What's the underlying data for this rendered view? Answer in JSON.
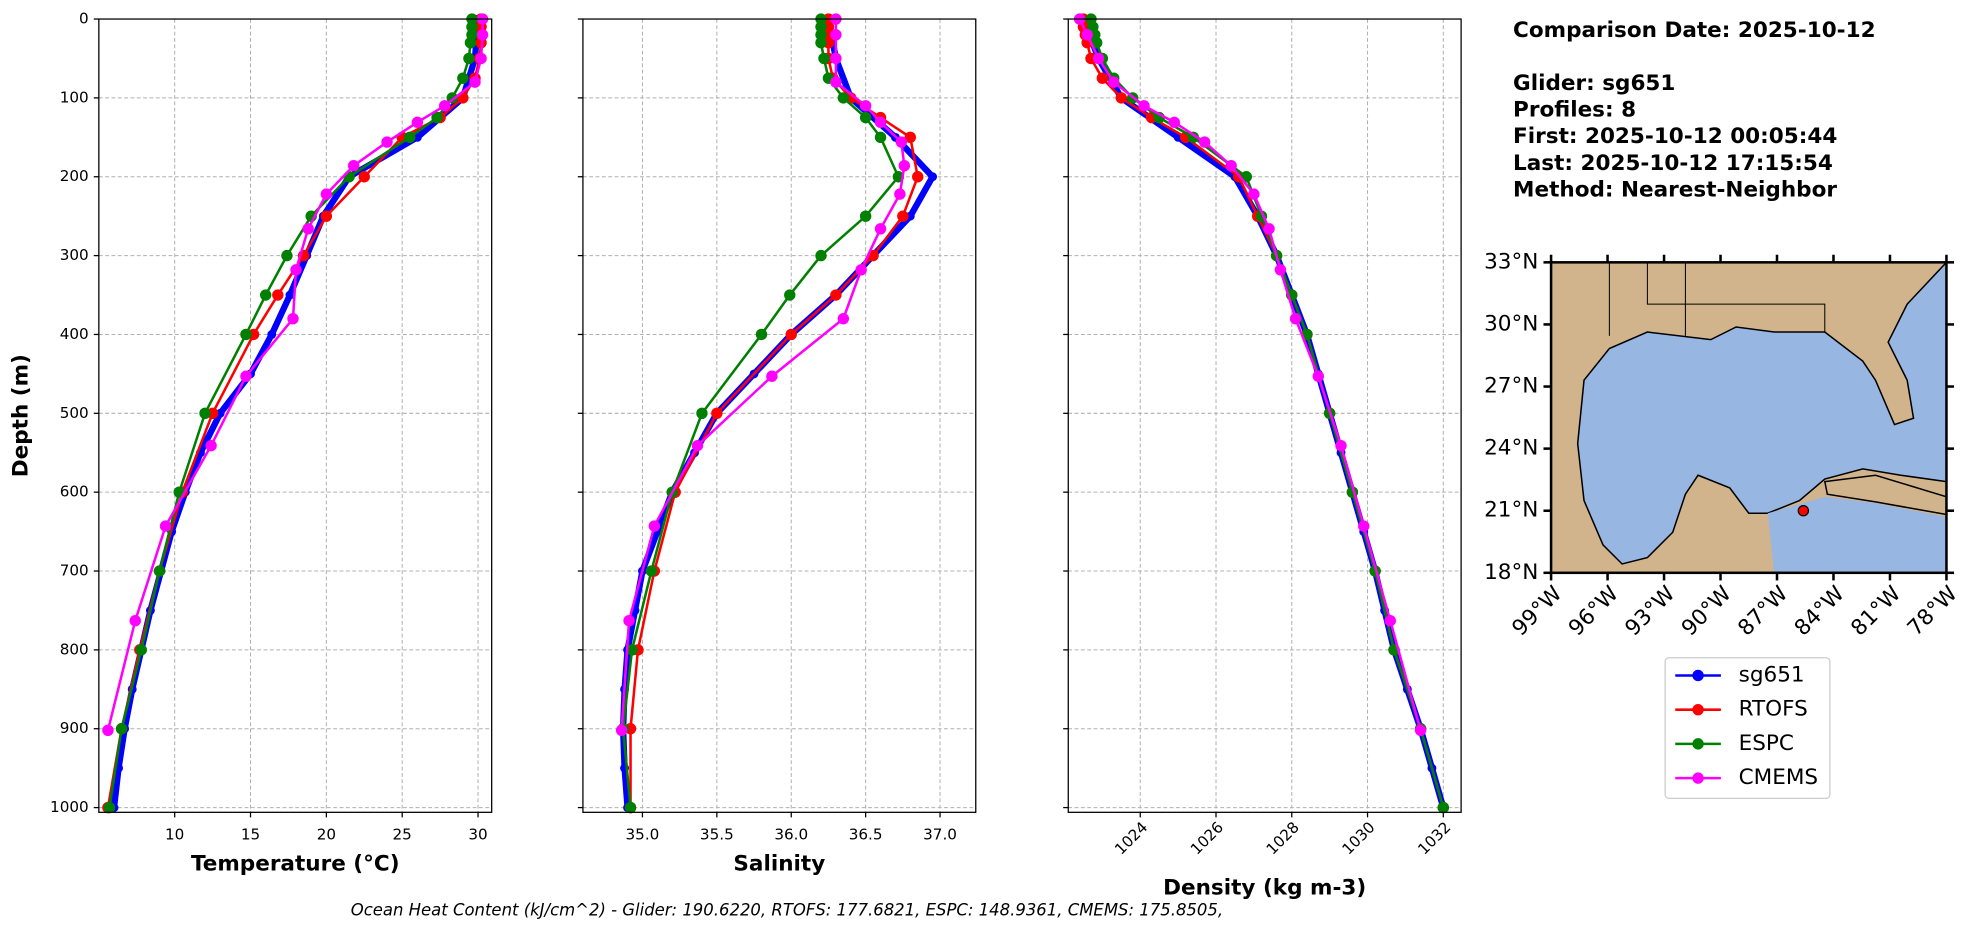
{
  "chart_data": [
    {
      "type": "line",
      "xlabel": "Temperature (°C)",
      "ylabel": "Depth (m)",
      "xlim": [
        5,
        30.9
      ],
      "xticks": [
        10,
        15,
        20,
        25,
        30
      ],
      "ylim": [
        1006,
        0
      ],
      "yticks": [
        0,
        100,
        200,
        300,
        400,
        500,
        600,
        700,
        800,
        900,
        1000
      ],
      "grid": true,
      "series": [
        {
          "name": "sg651",
          "color": "#0000ff",
          "y": [
            0,
            50,
            100,
            150,
            200,
            250,
            300,
            350,
            400,
            450,
            500,
            550,
            600,
            650,
            700,
            750,
            800,
            850,
            900,
            950,
            1000
          ],
          "x": [
            30.0,
            29.8,
            29.0,
            26.0,
            21.5,
            19.8,
            18.7,
            17.6,
            16.4,
            15.0,
            13.0,
            11.7,
            10.7,
            9.8,
            9.1,
            8.4,
            7.8,
            7.2,
            6.7,
            6.3,
            6.0
          ]
        },
        {
          "name": "RTOFS",
          "color": "#ff0000",
          "y": [
            0,
            10,
            20,
            30,
            50,
            75,
            100,
            125,
            150,
            200,
            250,
            300,
            350,
            400,
            500,
            600,
            700,
            800,
            900,
            1000
          ],
          "x": [
            30.2,
            30.2,
            30.2,
            30.2,
            30.1,
            29.8,
            29.0,
            27.5,
            25.0,
            22.5,
            20.0,
            18.5,
            16.8,
            15.2,
            12.5,
            10.5,
            9.0,
            7.7,
            6.5,
            5.6
          ]
        },
        {
          "name": "ESPC",
          "color": "#008000",
          "y": [
            0,
            10,
            20,
            30,
            50,
            75,
            100,
            125,
            150,
            200,
            250,
            300,
            350,
            400,
            500,
            600,
            700,
            800,
            900,
            1000
          ],
          "x": [
            29.6,
            29.6,
            29.6,
            29.5,
            29.4,
            29.0,
            28.3,
            27.3,
            25.5,
            21.5,
            19.0,
            17.4,
            16.0,
            14.7,
            12.0,
            10.3,
            9.0,
            7.8,
            6.5,
            5.7
          ]
        },
        {
          "name": "CMEMS",
          "color": "#ff00ff",
          "y": [
            0,
            20,
            50,
            80,
            110,
            131,
            156,
            186,
            222,
            266,
            318,
            380,
            453,
            541,
            643,
            763,
            902
          ],
          "x": [
            30.3,
            30.3,
            30.2,
            29.8,
            27.8,
            26.0,
            24.0,
            21.8,
            20.0,
            18.8,
            18.0,
            17.8,
            14.7,
            12.4,
            9.4,
            7.4,
            5.6
          ]
        }
      ]
    },
    {
      "type": "line",
      "xlabel": "Salinity",
      "xlim": [
        34.6,
        37.24
      ],
      "xticks": [
        {
          "value": 35,
          "label": "35.0"
        },
        {
          "value": 35.5,
          "label": "35.5"
        },
        {
          "value": 36,
          "label": "36.0"
        },
        {
          "value": 36.5,
          "label": "36.5"
        },
        {
          "value": 37,
          "label": "37.0"
        }
      ],
      "ylim": [
        1006,
        0
      ],
      "yticks": [
        0,
        100,
        200,
        300,
        400,
        500,
        600,
        700,
        800,
        900,
        1000
      ],
      "grid": true,
      "series": [
        {
          "color": "#0000ff",
          "y": [
            0,
            50,
            100,
            150,
            200,
            250,
            300,
            350,
            400,
            450,
            500,
            550,
            600,
            650,
            700,
            750,
            800,
            850,
            900,
            950,
            1000
          ],
          "x": [
            36.25,
            36.3,
            36.4,
            36.7,
            36.95,
            36.8,
            36.55,
            36.3,
            36.0,
            35.75,
            35.5,
            35.35,
            35.2,
            35.1,
            35.0,
            34.95,
            34.9,
            34.88,
            34.87,
            34.88,
            34.9
          ]
        },
        {
          "color": "#ff0000",
          "y": [
            0,
            10,
            20,
            30,
            50,
            75,
            100,
            125,
            150,
            200,
            250,
            300,
            350,
            400,
            500,
            600,
            700,
            800,
            900,
            1000
          ],
          "x": [
            36.25,
            36.25,
            36.25,
            36.25,
            36.25,
            36.28,
            36.4,
            36.6,
            36.8,
            36.85,
            36.75,
            36.55,
            36.3,
            36.0,
            35.5,
            35.22,
            35.08,
            34.97,
            34.92,
            34.92
          ]
        },
        {
          "color": "#008000",
          "y": [
            0,
            10,
            20,
            30,
            50,
            75,
            100,
            125,
            150,
            200,
            250,
            300,
            350,
            400,
            500,
            600,
            700,
            800,
            900,
            1000
          ],
          "x": [
            36.2,
            36.2,
            36.2,
            36.2,
            36.22,
            36.25,
            36.35,
            36.5,
            36.6,
            36.72,
            36.5,
            36.2,
            35.99,
            35.8,
            35.4,
            35.2,
            35.06,
            34.93,
            34.87,
            34.92
          ]
        },
        {
          "color": "#ff00ff",
          "y": [
            0,
            20,
            50,
            80,
            110,
            131,
            156,
            186,
            222,
            266,
            318,
            380,
            453,
            541,
            643,
            763,
            902
          ],
          "x": [
            36.3,
            36.3,
            36.3,
            36.3,
            36.5,
            36.6,
            36.74,
            36.76,
            36.73,
            36.6,
            36.47,
            36.35,
            35.87,
            35.37,
            35.08,
            34.91,
            34.86
          ]
        }
      ]
    },
    {
      "type": "line",
      "xlabel": "Density (kg m-3)",
      "xlim": [
        1022.1,
        1032.47
      ],
      "xticks": [
        1024,
        1026,
        1028,
        1030,
        1032
      ],
      "ylim": [
        1006,
        0
      ],
      "yticks": [
        0,
        100,
        200,
        300,
        400,
        500,
        600,
        700,
        800,
        900,
        1000
      ],
      "grid": true,
      "series": [
        {
          "color": "#0000ff",
          "y": [
            0,
            50,
            100,
            150,
            200,
            250,
            300,
            350,
            400,
            450,
            500,
            550,
            600,
            650,
            700,
            750,
            800,
            850,
            900,
            950,
            1000
          ],
          "x": [
            1022.5,
            1022.9,
            1023.5,
            1025.0,
            1026.5,
            1027.1,
            1027.6,
            1028.0,
            1028.4,
            1028.7,
            1029.0,
            1029.3,
            1029.6,
            1029.9,
            1030.2,
            1030.45,
            1030.7,
            1031.05,
            1031.4,
            1031.7,
            1032.0
          ]
        },
        {
          "color": "#ff0000",
          "y": [
            0,
            10,
            20,
            30,
            50,
            75,
            100,
            125,
            150,
            200,
            250,
            300,
            350,
            400,
            500,
            600,
            700,
            800,
            900,
            1000
          ],
          "x": [
            1022.5,
            1022.5,
            1022.55,
            1022.6,
            1022.7,
            1023.0,
            1023.5,
            1024.3,
            1025.2,
            1026.6,
            1027.1,
            1027.6,
            1028.0,
            1028.4,
            1029.0,
            1029.6,
            1030.2,
            1030.7,
            1031.4,
            1032.0
          ]
        },
        {
          "color": "#008000",
          "y": [
            0,
            10,
            20,
            30,
            50,
            75,
            100,
            125,
            150,
            200,
            250,
            300,
            350,
            400,
            500,
            600,
            700,
            800,
            900,
            1000
          ],
          "x": [
            1022.7,
            1022.75,
            1022.8,
            1022.85,
            1023.0,
            1023.3,
            1023.8,
            1024.5,
            1025.4,
            1026.8,
            1027.2,
            1027.6,
            1028.0,
            1028.4,
            1029.0,
            1029.6,
            1030.2,
            1030.7,
            1031.4,
            1032.0
          ]
        },
        {
          "color": "#ff00ff",
          "y": [
            0,
            20,
            50,
            80,
            110,
            131,
            156,
            186,
            222,
            266,
            318,
            380,
            453,
            541,
            643,
            763,
            902
          ],
          "x": [
            1022.4,
            1022.6,
            1022.9,
            1023.3,
            1024.1,
            1024.9,
            1025.7,
            1026.4,
            1027.0,
            1027.4,
            1027.7,
            1028.1,
            1028.7,
            1029.3,
            1029.9,
            1030.6,
            1031.4
          ]
        }
      ]
    }
  ],
  "info": {
    "comparison": "Comparison Date: 2025-10-12",
    "lines": [
      "Glider: sg651",
      "Profiles: 8",
      "First: 2025-10-12 00:05:44",
      "Last: 2025-10-12 17:15:54",
      "Method: Nearest-Neighbor"
    ]
  },
  "map": {
    "lonlim": [
      -99,
      -78
    ],
    "latlim": [
      18,
      33
    ],
    "lonticks": [
      {
        "value": -99,
        "label": "99°W"
      },
      {
        "value": -96,
        "label": "96°W"
      },
      {
        "value": -93,
        "label": "93°W"
      },
      {
        "value": -90,
        "label": "90°W"
      },
      {
        "value": -87,
        "label": "87°W"
      },
      {
        "value": -84,
        "label": "84°W"
      },
      {
        "value": -81,
        "label": "81°W"
      },
      {
        "value": -78,
        "label": "78°W"
      }
    ],
    "latticks": [
      {
        "value": 18,
        "label": "18°N"
      },
      {
        "value": 21,
        "label": "21°N"
      },
      {
        "value": 24,
        "label": "24°N"
      },
      {
        "value": 27,
        "label": "27°N"
      },
      {
        "value": 30,
        "label": "30°N"
      },
      {
        "value": 33,
        "label": "33°N"
      }
    ],
    "glider": {
      "lon": -85.6,
      "lat": 21.0,
      "color": "#ff0000"
    }
  },
  "footer": "Ocean Heat Content (kJ/cm^2) - Glider: 190.6220,  RTOFS: 177.6821,  ESPC: 148.9361,  CMEMS: 175.8505,"
}
